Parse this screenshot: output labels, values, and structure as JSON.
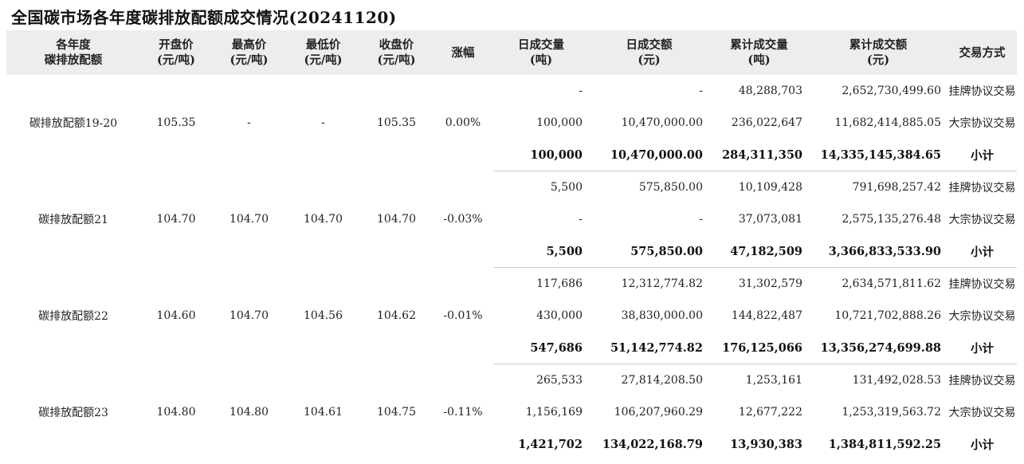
{
  "title": "全国碳市场各年度碳排放配额成交情况(20241120)",
  "columns": [
    {
      "l1": "各年度",
      "l2": "碳排放配额"
    },
    {
      "l1": "开盘价",
      "l2": "(元/吨)"
    },
    {
      "l1": "最高价",
      "l2": "(元/吨)"
    },
    {
      "l1": "最低价",
      "l2": "(元/吨)"
    },
    {
      "l1": "收盘价",
      "l2": "(元/吨)"
    },
    {
      "l1": "涨幅",
      "l2": ""
    },
    {
      "l1": "日成交量",
      "l2": "(吨)"
    },
    {
      "l1": "日成交额",
      "l2": "(元)"
    },
    {
      "l1": "累计成交量",
      "l2": "(吨)"
    },
    {
      "l1": "累计成交额",
      "l2": "(元)"
    },
    {
      "l1": "交易方式",
      "l2": ""
    }
  ],
  "groups": [
    {
      "name": "碳排放配额19-20",
      "open": "105.35",
      "high": "-",
      "low": "-",
      "close": "105.35",
      "change": "0.00%",
      "rows": [
        {
          "daily_vol": "-",
          "daily_amt": "-",
          "cum_vol": "48,288,703",
          "cum_amt": "2,652,730,499.60",
          "mode": "挂牌协议交易"
        },
        {
          "daily_vol": "100,000",
          "daily_amt": "10,470,000.00",
          "cum_vol": "236,022,647",
          "cum_amt": "11,682,414,885.05",
          "mode": "大宗协议交易"
        },
        {
          "daily_vol": "100,000",
          "daily_amt": "10,470,000.00",
          "cum_vol": "284,311,350",
          "cum_amt": "14,335,145,384.65",
          "mode": "小计"
        }
      ]
    },
    {
      "name": "碳排放配额21",
      "open": "104.70",
      "high": "104.70",
      "low": "104.70",
      "close": "104.70",
      "change": "-0.03%",
      "rows": [
        {
          "daily_vol": "5,500",
          "daily_amt": "575,850.00",
          "cum_vol": "10,109,428",
          "cum_amt": "791,698,257.42",
          "mode": "挂牌协议交易"
        },
        {
          "daily_vol": "-",
          "daily_amt": "-",
          "cum_vol": "37,073,081",
          "cum_amt": "2,575,135,276.48",
          "mode": "大宗协议交易"
        },
        {
          "daily_vol": "5,500",
          "daily_amt": "575,850.00",
          "cum_vol": "47,182,509",
          "cum_amt": "3,366,833,533.90",
          "mode": "小计"
        }
      ]
    },
    {
      "name": "碳排放配额22",
      "open": "104.60",
      "high": "104.70",
      "low": "104.56",
      "close": "104.62",
      "change": "-0.01%",
      "rows": [
        {
          "daily_vol": "117,686",
          "daily_amt": "12,312,774.82",
          "cum_vol": "31,302,579",
          "cum_amt": "2,634,571,811.62",
          "mode": "挂牌协议交易"
        },
        {
          "daily_vol": "430,000",
          "daily_amt": "38,830,000.00",
          "cum_vol": "144,822,487",
          "cum_amt": "10,721,702,888.26",
          "mode": "大宗协议交易"
        },
        {
          "daily_vol": "547,686",
          "daily_amt": "51,142,774.82",
          "cum_vol": "176,125,066",
          "cum_amt": "13,356,274,699.88",
          "mode": "小计"
        }
      ]
    },
    {
      "name": "碳排放配额23",
      "open": "104.80",
      "high": "104.80",
      "low": "104.61",
      "close": "104.75",
      "change": "-0.11%",
      "rows": [
        {
          "daily_vol": "265,533",
          "daily_amt": "27,814,208.50",
          "cum_vol": "1,253,161",
          "cum_amt": "131,492,028.53",
          "mode": "挂牌协议交易"
        },
        {
          "daily_vol": "1,156,169",
          "daily_amt": "106,207,960.29",
          "cum_vol": "12,677,222",
          "cum_amt": "1,253,319,563.72",
          "mode": "大宗协议交易"
        },
        {
          "daily_vol": "1,421,702",
          "daily_amt": "134,022,168.79",
          "cum_vol": "13,930,383",
          "cum_amt": "1,384,811,592.25",
          "mode": "小计"
        }
      ]
    }
  ]
}
